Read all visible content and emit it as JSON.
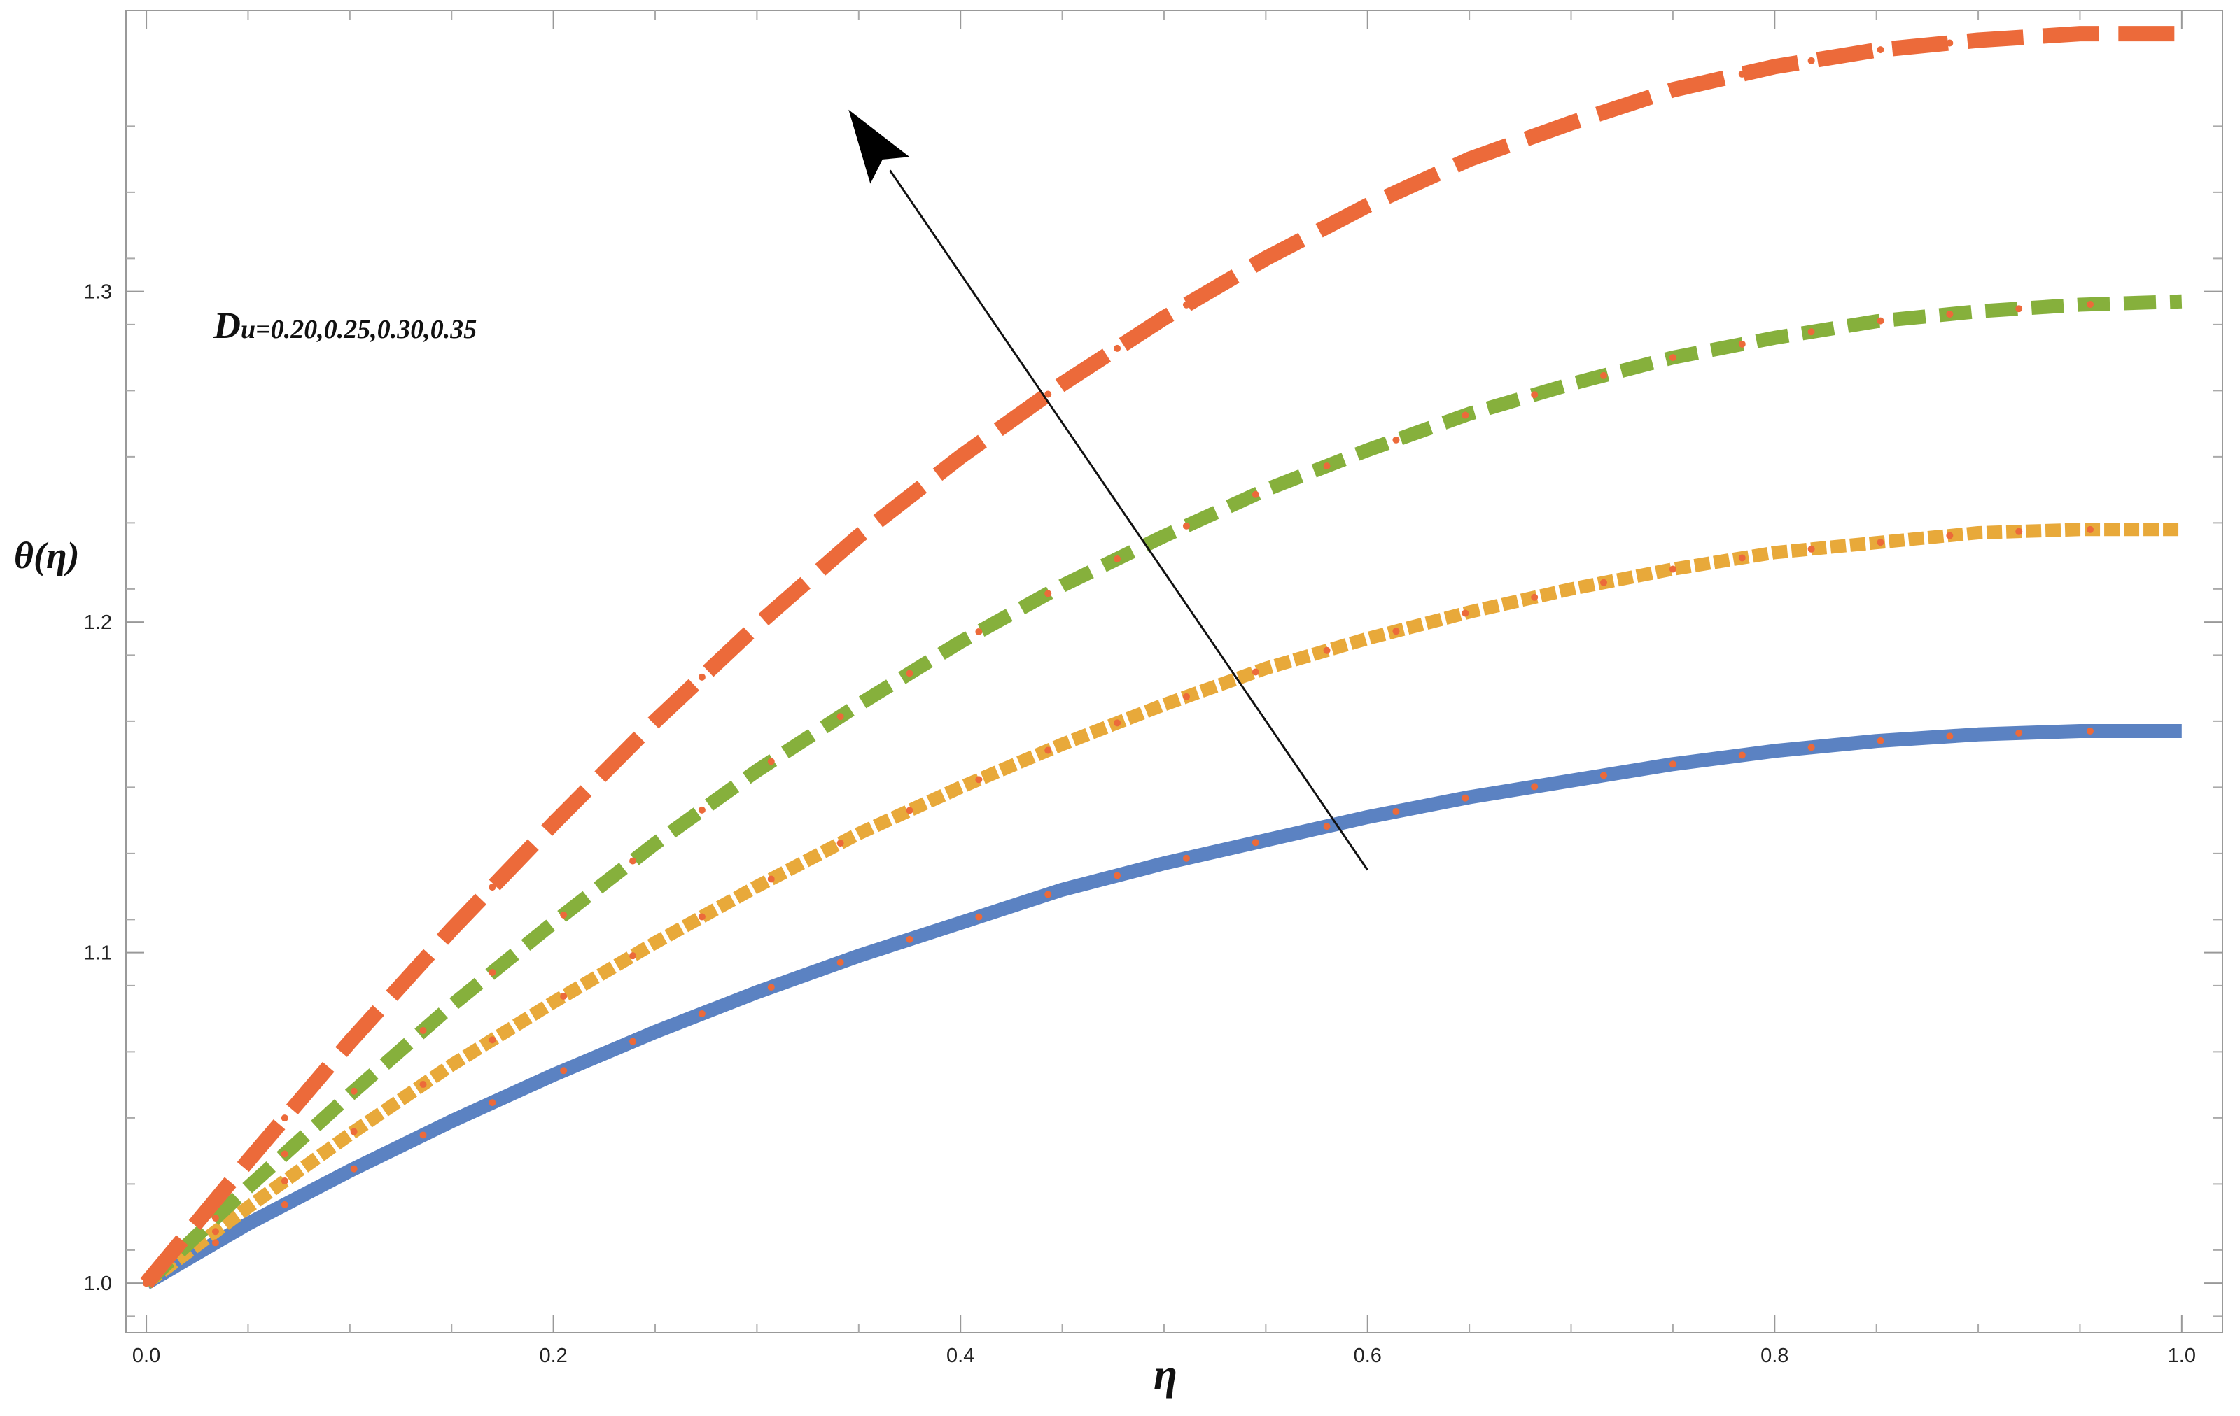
{
  "chart_data": {
    "type": "line",
    "title": "",
    "xlabel": "η",
    "ylabel": "θ(η)",
    "xlim": [
      -0.01,
      1.02
    ],
    "ylim": [
      0.985,
      1.385
    ],
    "x_ticks": [
      "0.0",
      "0.2",
      "0.4",
      "0.6",
      "0.8",
      "1.0"
    ],
    "y_ticks": [
      "1.0",
      "1.1",
      "1.2",
      "1.3"
    ],
    "grid": false,
    "annotation": {
      "symbol_main": "D",
      "symbol_sub": "u",
      "values_text": "=0.20,0.25,0.30,0.35"
    },
    "series": [
      {
        "color": "#5b82c2",
        "style": "solid",
        "x": [
          0,
          0.05,
          0.1,
          0.15,
          0.2,
          0.25,
          0.3,
          0.35,
          0.4,
          0.45,
          0.5,
          0.55,
          0.6,
          0.65,
          0.7,
          0.75,
          0.8,
          0.85,
          0.9,
          0.95,
          1.0
        ],
        "values": [
          1.0,
          1.018,
          1.034,
          1.049,
          1.063,
          1.076,
          1.088,
          1.099,
          1.109,
          1.119,
          1.127,
          1.134,
          1.141,
          1.147,
          1.152,
          1.157,
          1.161,
          1.164,
          1.166,
          1.167,
          1.167
        ]
      },
      {
        "color": "#e8a93a",
        "style": "dense-dash",
        "x": [
          0,
          0.05,
          0.1,
          0.15,
          0.2,
          0.25,
          0.3,
          0.35,
          0.4,
          0.45,
          0.5,
          0.55,
          0.6,
          0.65,
          0.7,
          0.75,
          0.8,
          0.85,
          0.9,
          0.95,
          1.0
        ],
        "values": [
          1.0,
          1.023,
          1.045,
          1.066,
          1.085,
          1.103,
          1.12,
          1.136,
          1.15,
          1.163,
          1.175,
          1.186,
          1.195,
          1.203,
          1.21,
          1.216,
          1.221,
          1.224,
          1.227,
          1.228,
          1.228
        ]
      },
      {
        "color": "#86b03c",
        "style": "dash",
        "x": [
          0,
          0.05,
          0.1,
          0.15,
          0.2,
          0.25,
          0.3,
          0.35,
          0.4,
          0.45,
          0.5,
          0.55,
          0.6,
          0.65,
          0.7,
          0.75,
          0.8,
          0.85,
          0.9,
          0.95,
          1.0
        ],
        "values": [
          1.0,
          1.029,
          1.057,
          1.084,
          1.109,
          1.133,
          1.155,
          1.175,
          1.194,
          1.211,
          1.226,
          1.24,
          1.252,
          1.263,
          1.272,
          1.28,
          1.286,
          1.291,
          1.294,
          1.296,
          1.297
        ]
      },
      {
        "color": "#ec6a3a",
        "style": "long-dash",
        "x": [
          0,
          0.05,
          0.1,
          0.15,
          0.2,
          0.25,
          0.3,
          0.35,
          0.4,
          0.45,
          0.5,
          0.55,
          0.6,
          0.65,
          0.7,
          0.75,
          0.8,
          0.85,
          0.9,
          0.95,
          1.0
        ],
        "values": [
          1.0,
          1.037,
          1.073,
          1.107,
          1.139,
          1.17,
          1.199,
          1.226,
          1.25,
          1.272,
          1.292,
          1.31,
          1.326,
          1.34,
          1.351,
          1.361,
          1.368,
          1.373,
          1.376,
          1.378,
          1.378
        ]
      }
    ],
    "marker_series": {
      "color": "#ec6a3a",
      "x": [
        0,
        0.034,
        0.068,
        0.102,
        0.136,
        0.17,
        0.205,
        0.239,
        0.273,
        0.307,
        0.341,
        0.375,
        0.409,
        0.443,
        0.477,
        0.511,
        0.545,
        0.58,
        0.614,
        0.648,
        0.682,
        0.716,
        0.75,
        0.784,
        0.818,
        0.852,
        0.886,
        0.92,
        0.955
      ]
    },
    "arrow": {
      "from": [
        0.6,
        1.125
      ],
      "to": [
        0.345,
        1.355
      ]
    }
  }
}
